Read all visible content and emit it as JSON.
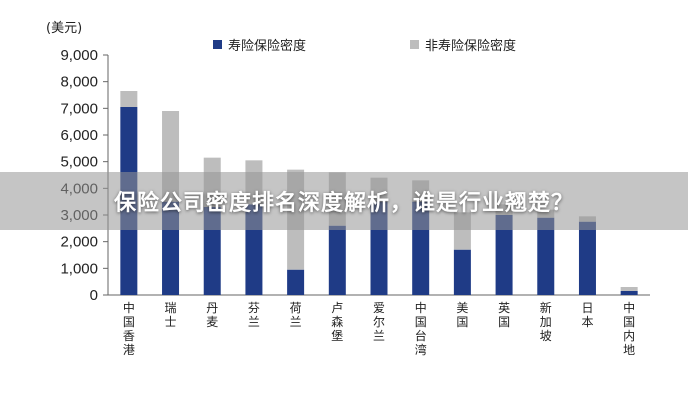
{
  "banner": {
    "title": "保险公司密度排名深度解析，谁是行业翘楚？"
  },
  "colors": {
    "life": "#1f3b86",
    "nonlife": "#bdbdbd"
  },
  "chart_data": {
    "type": "bar",
    "stacked": true,
    "unit_label": "(美元)",
    "categories": [
      "中国香港",
      "瑞士",
      "丹麦",
      "芬兰",
      "荷兰",
      "卢森堡",
      "爱尔兰",
      "中国台湾",
      "美国",
      "英国",
      "新加坡",
      "日本",
      "中国内地"
    ],
    "series": [
      {
        "name": "寿险保险密度",
        "values": [
          7050,
          3500,
          3300,
          3400,
          950,
          2600,
          3500,
          3500,
          1700,
          3000,
          2900,
          2750,
          150
        ]
      },
      {
        "name": "非寿险保险密度",
        "values": [
          600,
          3400,
          1850,
          1650,
          3750,
          2000,
          900,
          800,
          1400,
          400,
          300,
          200,
          150
        ]
      }
    ],
    "yticks": [
      "0",
      "1,000",
      "2,000",
      "3,000",
      "4,000",
      "5,000",
      "6,000",
      "7,000",
      "8,000",
      "9,000"
    ],
    "ylim": [
      0,
      9000
    ],
    "legend_position": "top"
  }
}
